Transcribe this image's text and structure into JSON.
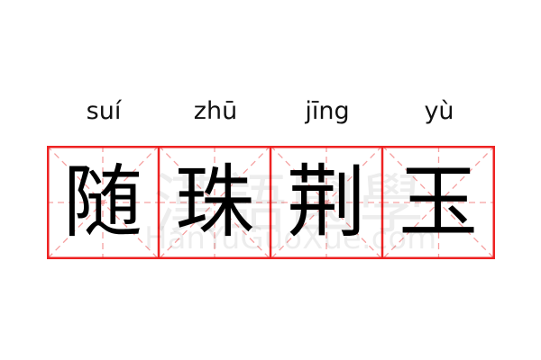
{
  "phrase": {
    "items": [
      {
        "pinyin": "suí",
        "char": "随"
      },
      {
        "pinyin": "zhū",
        "char": "珠"
      },
      {
        "pinyin": "jīng",
        "char": "荆"
      },
      {
        "pinyin": "yù",
        "char": "玉"
      }
    ]
  },
  "watermark": {
    "chinese": "漢語國學",
    "latin": "HanYuGuoXue.com"
  },
  "colors": {
    "grid_border": "#ee2222",
    "guide_lines": "#f5a0a0",
    "text": "#000000"
  }
}
